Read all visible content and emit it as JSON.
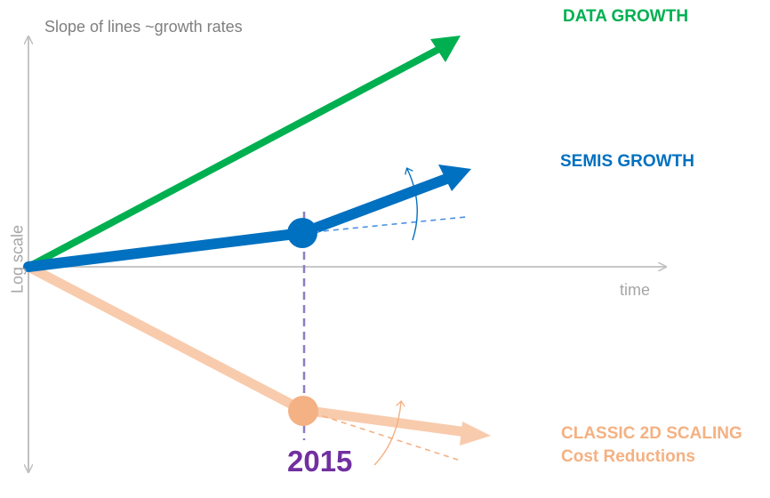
{
  "subtitle": "Slope of lines ~growth rates",
  "axes": {
    "x_label": "time",
    "y_label": "Log scale"
  },
  "labels": {
    "data_growth": "DATA GROWTH",
    "semis_growth": "SEMIS GROWTH",
    "classic_scaling": "CLASSIC 2D SCALING",
    "cost_reductions": "Cost Reductions",
    "year": "2015"
  },
  "colors": {
    "data_growth": "#00b050",
    "semis_growth": "#0070c0",
    "classic_scaling": "#f4b183",
    "year_marker": "#7030a0",
    "axis": "#bfbfbf"
  }
}
